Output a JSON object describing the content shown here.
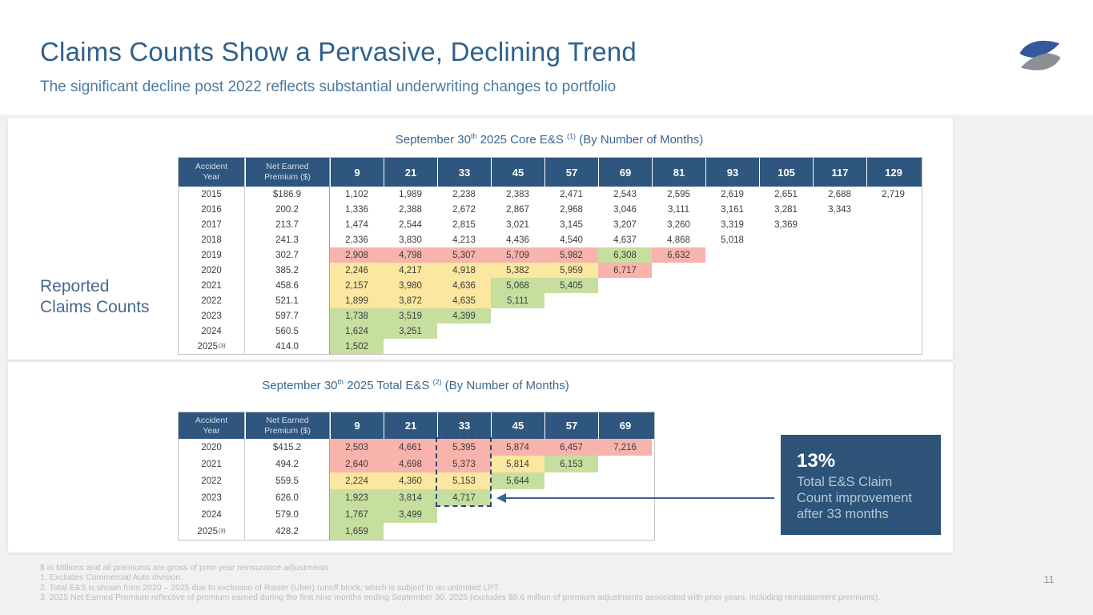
{
  "slide": {
    "title": "Claims Counts Show a Pervasive, Declining Trend",
    "subtitle": "The significant decline post 2022 reflects substantial underwriting changes to portfolio",
    "side_label_lines": [
      "Reported",
      "Claims Counts"
    ],
    "page_number": "11"
  },
  "colors": {
    "red": "#f8b4ac",
    "yellow": "#fbe79f",
    "green": "#c6df9f",
    "none": "transparent",
    "header_navy": "#2e567e",
    "accent_blue": "#2f618c"
  },
  "tables": [
    {
      "title": {
        "pre": "September 30",
        "sup1": "th",
        "mid": " 2025 Core E&S ",
        "sup2": "(1)",
        "post": " (By Number of Months)"
      },
      "headers": {
        "accident_year": "Accident Year",
        "premium": "Net Earned Premium ($)"
      },
      "months": [
        "9",
        "21",
        "33",
        "45",
        "57",
        "69",
        "81",
        "93",
        "105",
        "117",
        "129"
      ],
      "rows": [
        {
          "year": "2015",
          "sup": "",
          "premium": "$186.9",
          "cells": [
            [
              "1,102",
              "none"
            ],
            [
              "1,989",
              "none"
            ],
            [
              "2,238",
              "none"
            ],
            [
              "2,383",
              "none"
            ],
            [
              "2,471",
              "none"
            ],
            [
              "2,543",
              "none"
            ],
            [
              "2,595",
              "none"
            ],
            [
              "2,619",
              "none"
            ],
            [
              "2,651",
              "none"
            ],
            [
              "2,688",
              "none"
            ],
            [
              "2,719",
              "none"
            ]
          ]
        },
        {
          "year": "2016",
          "sup": "",
          "premium": "200.2",
          "cells": [
            [
              "1,336",
              "none"
            ],
            [
              "2,388",
              "none"
            ],
            [
              "2,672",
              "none"
            ],
            [
              "2,867",
              "none"
            ],
            [
              "2,968",
              "none"
            ],
            [
              "3,046",
              "none"
            ],
            [
              "3,111",
              "none"
            ],
            [
              "3,161",
              "none"
            ],
            [
              "3,281",
              "none"
            ],
            [
              "3,343",
              "none"
            ]
          ]
        },
        {
          "year": "2017",
          "sup": "",
          "premium": "213.7",
          "cells": [
            [
              "1,474",
              "none"
            ],
            [
              "2,544",
              "none"
            ],
            [
              "2,815",
              "none"
            ],
            [
              "3,021",
              "none"
            ],
            [
              "3,145",
              "none"
            ],
            [
              "3,207",
              "none"
            ],
            [
              "3,260",
              "none"
            ],
            [
              "3,319",
              "none"
            ],
            [
              "3,369",
              "none"
            ]
          ]
        },
        {
          "year": "2018",
          "sup": "",
          "premium": "241.3",
          "cells": [
            [
              "2,336",
              "none"
            ],
            [
              "3,830",
              "none"
            ],
            [
              "4,213",
              "none"
            ],
            [
              "4,436",
              "none"
            ],
            [
              "4,540",
              "none"
            ],
            [
              "4,637",
              "none"
            ],
            [
              "4,868",
              "none"
            ],
            [
              "5,018",
              "none"
            ]
          ]
        },
        {
          "year": "2019",
          "sup": "",
          "premium": "302.7",
          "cells": [
            [
              "2,908",
              "red"
            ],
            [
              "4,798",
              "red"
            ],
            [
              "5,307",
              "red"
            ],
            [
              "5,709",
              "red"
            ],
            [
              "5,982",
              "red"
            ],
            [
              "6,308",
              "green"
            ],
            [
              "6,632",
              "red"
            ]
          ]
        },
        {
          "year": "2020",
          "sup": "",
          "premium": "385.2",
          "cells": [
            [
              "2,246",
              "yellow"
            ],
            [
              "4,217",
              "yellow"
            ],
            [
              "4,918",
              "yellow"
            ],
            [
              "5,382",
              "yellow"
            ],
            [
              "5,959",
              "yellow"
            ],
            [
              "6,717",
              "red"
            ]
          ]
        },
        {
          "year": "2021",
          "sup": "",
          "premium": "458.6",
          "cells": [
            [
              "2,157",
              "yellow"
            ],
            [
              "3,980",
              "yellow"
            ],
            [
              "4,636",
              "yellow"
            ],
            [
              "5,068",
              "green"
            ],
            [
              "5,405",
              "green"
            ]
          ]
        },
        {
          "year": "2022",
          "sup": "",
          "premium": "521.1",
          "cells": [
            [
              "1,899",
              "yellow"
            ],
            [
              "3,872",
              "yellow"
            ],
            [
              "4,635",
              "yellow"
            ],
            [
              "5,111",
              "green"
            ]
          ]
        },
        {
          "year": "2023",
          "sup": "",
          "premium": "597.7",
          "cells": [
            [
              "1,738",
              "green"
            ],
            [
              "3,519",
              "green"
            ],
            [
              "4,399",
              "green"
            ]
          ]
        },
        {
          "year": "2024",
          "sup": "",
          "premium": "560.5",
          "cells": [
            [
              "1,624",
              "green"
            ],
            [
              "3,251",
              "green"
            ]
          ]
        },
        {
          "year": "2025",
          "sup": "(3)",
          "premium": "414.0",
          "cells": [
            [
              "1,502",
              "green"
            ]
          ]
        }
      ]
    },
    {
      "title": {
        "pre": "September 30",
        "sup1": "th",
        "mid": " 2025 Total E&S ",
        "sup2": "(2)",
        "post": " (By Number of Months)"
      },
      "headers": {
        "accident_year": "Accident Year",
        "premium": "Net Earned Premium ($)"
      },
      "months": [
        "9",
        "21",
        "33",
        "45",
        "57",
        "69"
      ],
      "rows": [
        {
          "year": "2020",
          "sup": "",
          "premium": "$415.2",
          "cells": [
            [
              "2,503",
              "red"
            ],
            [
              "4,661",
              "red"
            ],
            [
              "5,395",
              "red"
            ],
            [
              "5,874",
              "red"
            ],
            [
              "6,457",
              "red"
            ],
            [
              "7,216",
              "red"
            ]
          ]
        },
        {
          "year": "2021",
          "sup": "",
          "premium": "494.2",
          "cells": [
            [
              "2,640",
              "red"
            ],
            [
              "4,698",
              "red"
            ],
            [
              "5,373",
              "red"
            ],
            [
              "5,814",
              "yellow"
            ],
            [
              "6,153",
              "green"
            ]
          ]
        },
        {
          "year": "2022",
          "sup": "",
          "premium": "559.5",
          "cells": [
            [
              "2,224",
              "yellow"
            ],
            [
              "4,360",
              "yellow"
            ],
            [
              "5,153",
              "yellow"
            ],
            [
              "5,644",
              "green"
            ]
          ]
        },
        {
          "year": "2023",
          "sup": "",
          "premium": "626.0",
          "cells": [
            [
              "1,923",
              "green"
            ],
            [
              "3,814",
              "green"
            ],
            [
              "4,717",
              "green"
            ]
          ]
        },
        {
          "year": "2024",
          "sup": "",
          "premium": "579.0",
          "cells": [
            [
              "1,767",
              "green"
            ],
            [
              "3,499",
              "green"
            ]
          ]
        },
        {
          "year": "2025",
          "sup": "(3)",
          "premium": "428.2",
          "cells": [
            [
              "1,659",
              "green"
            ]
          ]
        }
      ]
    }
  ],
  "callout": {
    "value": "13%",
    "text": "Total E&S Claim Count improvement after 33 months"
  },
  "footnotes": [
    "$ in Millions and all premiums are gross of prior year reinsurance adjustments",
    "1.  Excludes Commercial Auto division.",
    "2.  Total E&S is shown from  2020 – 2025 due to exclusion of Raiser (Uber) runoff block, which is subject to an unlimited LPT.",
    "3.  2025 Net Earned Premium reflective of premium earned during the first nine months ending September 30, 2025 (excludes $9.6 million of premium adjustments associated with prior years, including reinstatement premiums)."
  ]
}
